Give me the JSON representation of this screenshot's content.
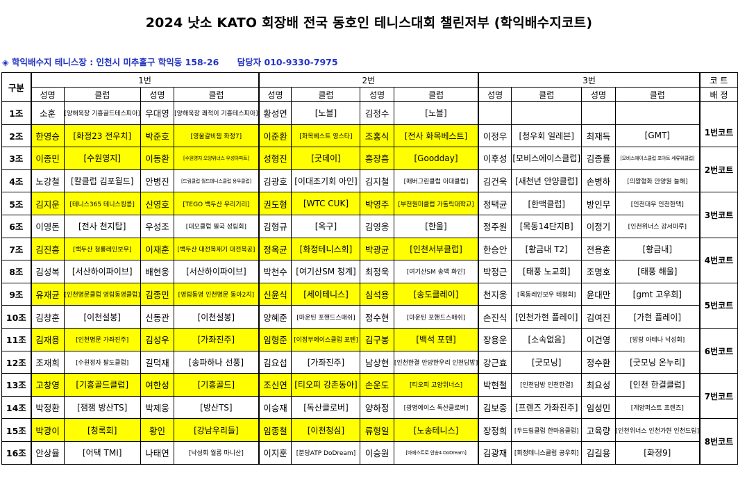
{
  "title": "2024 낫소 KATO 회장배 전국 동호인 테니스대회 챌린저부 (학익배수지코트)",
  "venue": {
    "marker": "◈",
    "text": "학익배수지 테니스장 : 인천시 미추홀구 학익동 158-26",
    "contact": "담당자 010-9330-7975"
  },
  "headers": {
    "group": "구분",
    "pair1": "1번",
    "pair2": "2번",
    "pair3": "3번",
    "court_top": "코 트",
    "court_bottom": "배 정",
    "name": "성명",
    "club": "클럽"
  },
  "rows": [
    {
      "label": "1조",
      "hl": false,
      "p": [
        [
          "소훈",
          "[양해욱장 기흥골드테스피아]"
        ],
        [
          "우대영",
          "[양해욱장 쾌적이 기흥테스피아]"
        ],
        [
          "황성연",
          "[노블]"
        ],
        [
          "김정수",
          "[노블]"
        ],
        [
          "",
          ""
        ],
        [
          "",
          ""
        ]
      ]
    },
    {
      "label": "2조",
      "hl": true,
      "p": [
        [
          "한영승",
          "[화정23 전우치]"
        ],
        [
          "박준호",
          "[영울갈비찜 화정7]"
        ],
        [
          "이준환",
          "[화목베스트 영스타]"
        ],
        [
          "조홍식",
          "[전사 화목베스트]"
        ],
        [
          "이정우",
          "[청우회 일레븐]"
        ],
        [
          "최재득",
          "[GMT]"
        ]
      ]
    },
    {
      "label": "3조",
      "hl": true,
      "p": [
        [
          "이종민",
          "[수원영지]"
        ],
        [
          "이동환",
          "[수원영지 오양위너스 우성아파트]"
        ],
        [
          "성형진",
          "[굿데이]"
        ],
        [
          "홍장흠",
          "[Goodday]"
        ],
        [
          "이후성",
          "[모비스에이스클럽]"
        ],
        [
          "김종률",
          "[모비스에이스클럽 포아트 세류위클럽]"
        ]
      ]
    },
    {
      "label": "4조",
      "hl": false,
      "p": [
        [
          "노강철",
          "[칼클럽 김포월드]"
        ],
        [
          "안병진",
          "[드림클럽 월드테니스클럽 용우클럽]"
        ],
        [
          "김광호",
          "[이대조기회 아인]"
        ],
        [
          "김지철",
          "[매버그린클럽 이대클럽]"
        ],
        [
          "김건욱",
          "[새천년 안양클럽]"
        ],
        [
          "손병하",
          "[의왕형화 안양원 늘해]"
        ]
      ]
    },
    {
      "label": "5조",
      "hl": true,
      "p": [
        [
          "김지운",
          "[테니스365 테니스킹콩]"
        ],
        [
          "신영호",
          "[TEGO 백두산 우리기리]"
        ],
        [
          "권도형",
          "[WTC CUK]"
        ],
        [
          "박영주",
          "[부천원미클럽 가톨릭대학교]"
        ],
        [
          "정택균",
          "[한맥클럽]"
        ],
        [
          "방인무",
          "[인천대우 인천한맥]"
        ]
      ]
    },
    {
      "label": "6조",
      "hl": false,
      "p": [
        [
          "이영돈",
          "[전사 천지탑]"
        ],
        [
          "우성조",
          "[대모클럽 필국 성림회]"
        ],
        [
          "김형규",
          "[옥구]"
        ],
        [
          "김영웅",
          "[한울]"
        ],
        [
          "정주원",
          "[목동14단지B]"
        ],
        [
          "이정기",
          "[인천위너스 강서마루]"
        ]
      ]
    },
    {
      "label": "7조",
      "hl": true,
      "p": [
        [
          "김진흥",
          "[백두산 청룡레인보우]"
        ],
        [
          "이재훈",
          "[백두산 대전목재기 대전목공]"
        ],
        [
          "정옥균",
          "[화정테니스회]"
        ],
        [
          "박광균",
          "[인천서부클럽]"
        ],
        [
          "한승안",
          "[황금내 T2]"
        ],
        [
          "전용훈",
          "[황금내]"
        ]
      ]
    },
    {
      "label": "8조",
      "hl": false,
      "p": [
        [
          "김성복",
          "[서산하이파이브]"
        ],
        [
          "배현웅",
          "[서산하이파이브]"
        ],
        [
          "박천수",
          "[여기산SM 청계]"
        ],
        [
          "최정욱",
          "[여기산SM 송백 화인]"
        ],
        [
          "박정근",
          "[태풍 노교회]"
        ],
        [
          "조명호",
          "[태풍 해울]"
        ]
      ]
    },
    {
      "label": "9조",
      "hl": true,
      "p": [
        [
          "유재균",
          "[인천명문클럽 영림동영클럽]"
        ],
        [
          "김종민",
          "[영림동영 인천명문 동아2지]"
        ],
        [
          "신윤식",
          "[세이테니스]"
        ],
        [
          "심석용",
          "[송도클레이]"
        ],
        [
          "천지웅",
          "[목동레인보우 테평회]"
        ],
        [
          "윤대만",
          "[gmt 고우회]"
        ]
      ]
    },
    {
      "label": "10조",
      "hl": false,
      "p": [
        [
          "김창훈",
          "[이천설봉]"
        ],
        [
          "신동관",
          "[이천설봉]"
        ],
        [
          "양혜준",
          "[마운틴 포핸드스매쉬]"
        ],
        [
          "정수현",
          "[마운틴 포핸드스매쉬]"
        ],
        [
          "손진식",
          "[인천가현 플레이]"
        ],
        [
          "김여진",
          "[가현 플레이]"
        ]
      ]
    },
    {
      "label": "11조",
      "hl": true,
      "p": [
        [
          "김재용",
          "[인천명문 가좌진주]"
        ],
        [
          "김성우",
          "[가좌진주]"
        ],
        [
          "임형준",
          "[이정부에이스클럽 포텐]"
        ],
        [
          "김구봉",
          "[백석 포텐]"
        ],
        [
          "장용운",
          "[소속없음]"
        ],
        [
          "이건영",
          "[방랑 아테나 낙성회]"
        ]
      ]
    },
    {
      "label": "12조",
      "hl": false,
      "p": [
        [
          "조재희",
          "[수원정자 팔도클럽]"
        ],
        [
          "길덕재",
          "[송파하나 선풍]"
        ],
        [
          "김요섭",
          "[가좌진주]"
        ],
        [
          "남상현",
          "[인천한결 안양한우리 인천담방]"
        ],
        [
          "강근효",
          "[굿모닝]"
        ],
        [
          "정수환",
          "[굿모닝 온누리]"
        ]
      ]
    },
    {
      "label": "13조",
      "hl": true,
      "p": [
        [
          "고창영",
          "[기흥골드클럽]"
        ],
        [
          "여한성",
          "[기흥골드]"
        ],
        [
          "조신연",
          "[티오피 강촌동아]"
        ],
        [
          "손운도",
          "[티오피 고양위너스]"
        ],
        [
          "박현철",
          "[인천담방 인천한결]"
        ],
        [
          "최요성",
          "[인천 한결클럽]"
        ]
      ]
    },
    {
      "label": "14조",
      "hl": false,
      "p": [
        [
          "박정환",
          "[잼잼 방산TS]"
        ],
        [
          "박제웅",
          "[방산TS]"
        ],
        [
          "이승재",
          "[독산클로버]"
        ],
        [
          "양하정",
          "[광명에이스 독산클로버]"
        ],
        [
          "김보중",
          "[프렌즈 가좌진주]"
        ],
        [
          "임성민",
          "[계양퍼스트 프렌즈]"
        ]
      ]
    },
    {
      "label": "15조",
      "hl": true,
      "p": [
        [
          "박광이",
          "[청록회]"
        ],
        [
          "황인",
          "[강남우리들]"
        ],
        [
          "임종철",
          "[이천청심]"
        ],
        [
          "류형일",
          "[노송테니스]"
        ],
        [
          "장정희",
          "[두드림클럽 한마음클럽]"
        ],
        [
          "고육량",
          "[인천위너스 인천가현 인천드림]"
        ]
      ]
    },
    {
      "label": "16조",
      "hl": false,
      "p": [
        [
          "안상율",
          "[어택 TMI]"
        ],
        [
          "나태연",
          "[낙성회 월롱 마니산]"
        ],
        [
          "이지훈",
          "[분당ATP DoDream]"
        ],
        [
          "이승원",
          "[마에스트로 안송4 DoDream]"
        ],
        [
          "김광재",
          "[회정테니스클럽 공우회]"
        ],
        [
          "김길용",
          "[화정9]"
        ]
      ]
    }
  ],
  "courts": [
    "1번코트",
    "2번코트",
    "3번코트",
    "4번코트",
    "5번코트",
    "6번코트",
    "7번코트",
    "8번코트"
  ]
}
